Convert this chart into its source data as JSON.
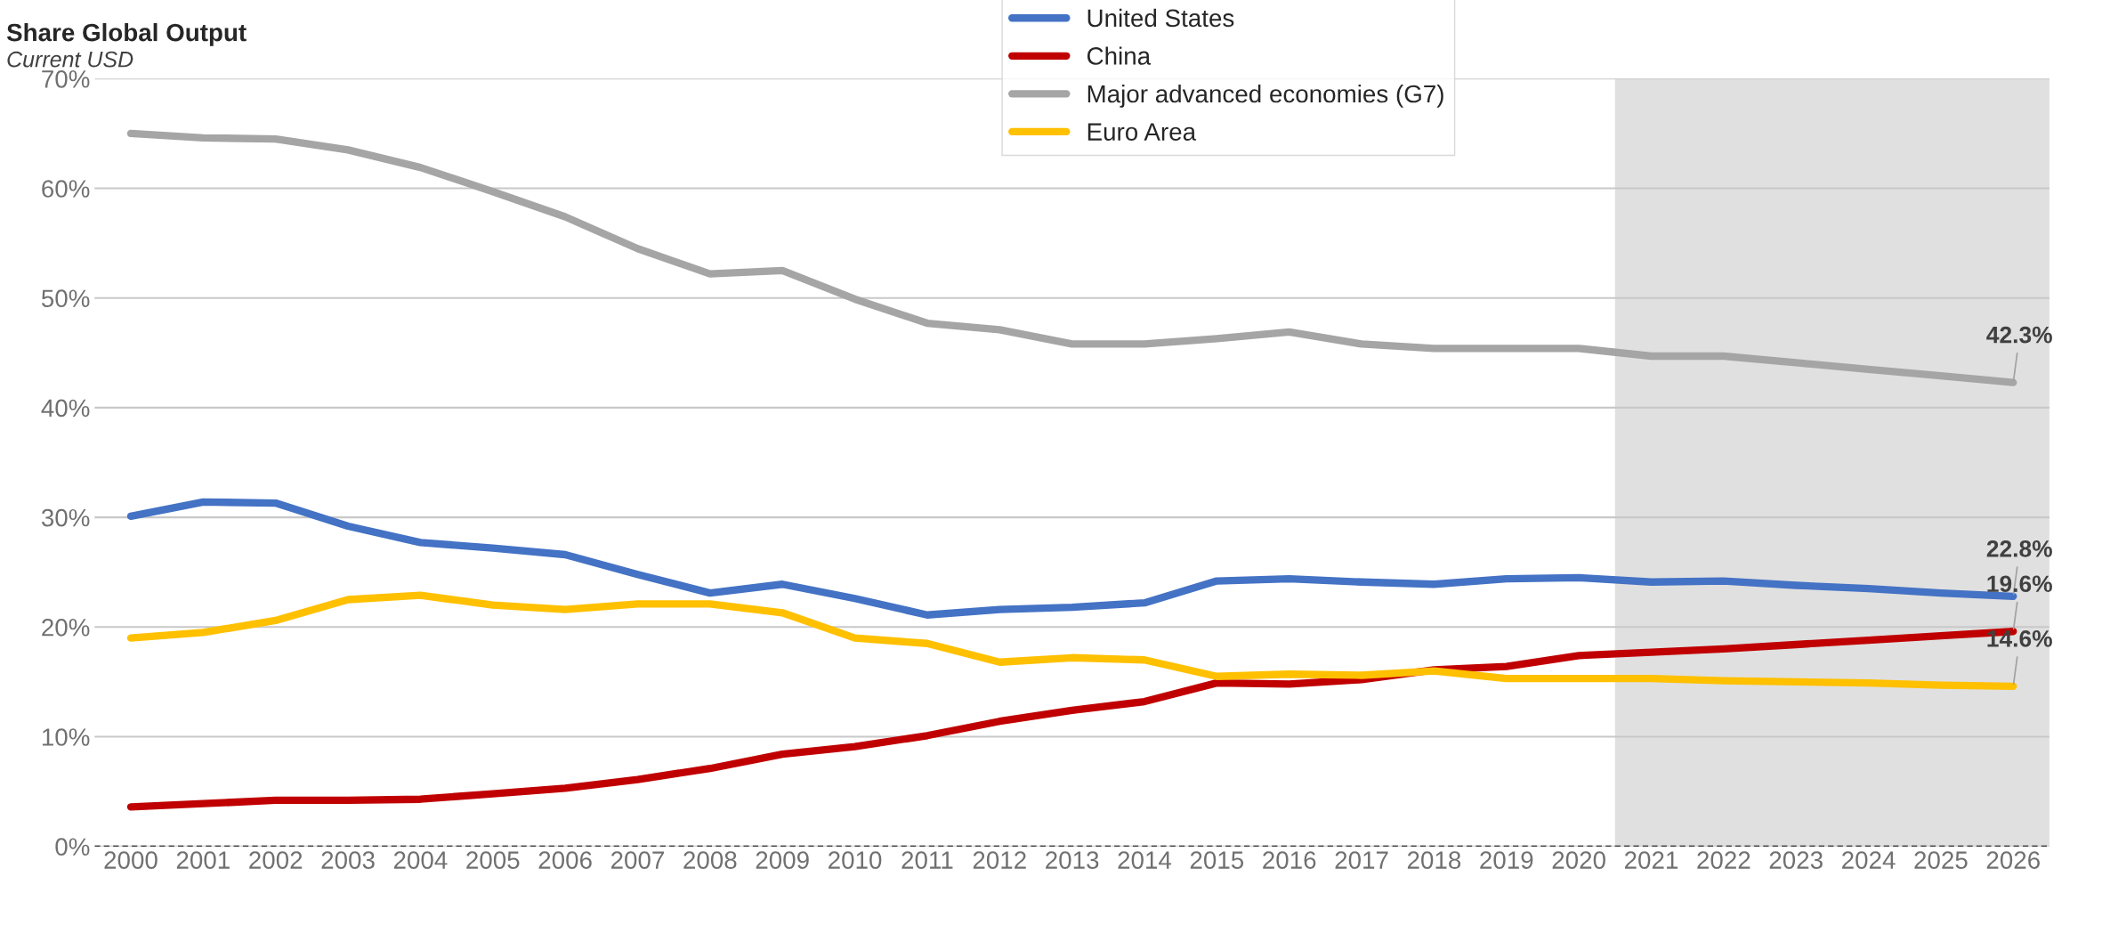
{
  "chart_data": {
    "type": "line",
    "title": "Share Global Output",
    "subtitle": "Current USD",
    "categories": [
      "2000",
      "2001",
      "2002",
      "2003",
      "2004",
      "2005",
      "2006",
      "2007",
      "2008",
      "2009",
      "2010",
      "2011",
      "2012",
      "2013",
      "2014",
      "2015",
      "2016",
      "2017",
      "2018",
      "2019",
      "2020",
      "2021",
      "2022",
      "2023",
      "2024",
      "2025",
      "2026"
    ],
    "series": [
      {
        "name": "United States",
        "color": "#4472c4",
        "values": [
          30.1,
          31.4,
          31.3,
          29.2,
          27.7,
          27.2,
          26.6,
          24.8,
          23.1,
          23.9,
          22.6,
          21.1,
          21.6,
          21.8,
          22.2,
          24.2,
          24.4,
          24.1,
          23.9,
          24.4,
          24.5,
          24.1,
          24.2,
          23.8,
          23.5,
          23.1,
          22.8
        ],
        "value_labels": [
          null,
          null,
          null,
          null,
          null,
          null,
          null,
          null,
          null,
          null,
          null,
          null,
          null,
          null,
          null,
          null,
          null,
          null,
          null,
          null,
          null,
          null,
          null,
          null,
          null,
          null,
          "22.8%"
        ]
      },
      {
        "name": "China",
        "color": "#c00000",
        "values": [
          3.6,
          3.9,
          4.2,
          4.2,
          4.3,
          4.8,
          5.3,
          6.1,
          7.1,
          8.4,
          9.1,
          10.1,
          11.4,
          12.4,
          13.2,
          14.9,
          14.8,
          15.2,
          16.1,
          16.4,
          17.4,
          17.7,
          18.0,
          18.4,
          18.8,
          19.2,
          19.6
        ],
        "value_labels": [
          null,
          null,
          null,
          null,
          null,
          null,
          null,
          null,
          null,
          null,
          null,
          null,
          null,
          null,
          null,
          null,
          null,
          null,
          null,
          null,
          null,
          null,
          null,
          null,
          null,
          null,
          "19.6%"
        ]
      },
      {
        "name": "Major advanced economies (G7)",
        "color": "#a5a5a5",
        "values": [
          65.0,
          64.6,
          64.5,
          63.5,
          61.9,
          59.7,
          57.4,
          54.5,
          52.2,
          52.5,
          49.9,
          47.7,
          47.1,
          45.8,
          45.8,
          46.3,
          46.9,
          45.8,
          45.4,
          45.4,
          45.4,
          44.7,
          44.7,
          44.1,
          43.5,
          42.9,
          42.3
        ],
        "value_labels": [
          null,
          null,
          null,
          null,
          null,
          null,
          null,
          null,
          null,
          null,
          null,
          null,
          null,
          null,
          null,
          null,
          null,
          null,
          null,
          null,
          null,
          null,
          null,
          null,
          null,
          null,
          "42.3%"
        ]
      },
      {
        "name": "Euro Area",
        "color": "#ffc000",
        "values": [
          19.0,
          19.5,
          20.6,
          22.5,
          22.9,
          22.0,
          21.6,
          22.1,
          22.1,
          21.3,
          19.0,
          18.5,
          16.8,
          17.2,
          17.0,
          15.5,
          15.7,
          15.6,
          16.0,
          15.3,
          15.3,
          15.3,
          15.1,
          15.0,
          14.9,
          14.7,
          14.6
        ],
        "value_labels": [
          null,
          null,
          null,
          null,
          null,
          null,
          null,
          null,
          null,
          null,
          null,
          null,
          null,
          null,
          null,
          null,
          null,
          null,
          null,
          null,
          null,
          null,
          null,
          null,
          null,
          null,
          "14.6%"
        ]
      }
    ],
    "ylim": [
      0,
      70
    ],
    "yticks": [
      {
        "value": 0,
        "label": "0%"
      },
      {
        "value": 10,
        "label": "10%"
      },
      {
        "value": 20,
        "label": "20%"
      },
      {
        "value": 30,
        "label": "30%"
      },
      {
        "value": 40,
        "label": "40%"
      },
      {
        "value": 50,
        "label": "50%"
      },
      {
        "value": 60,
        "label": "60%"
      },
      {
        "value": 70,
        "label": "70%"
      }
    ],
    "grid": "y",
    "legend": "top",
    "marker": "none",
    "line_style": "solid",
    "ref_lines": [
      {
        "axis": "y",
        "value": 0,
        "label": null,
        "color": "#000000",
        "line_style": "dashed"
      }
    ],
    "bands": [
      {
        "axis": "x",
        "from": "2021",
        "to": "2026",
        "label": null,
        "color": "#e0e0e0"
      }
    ]
  }
}
